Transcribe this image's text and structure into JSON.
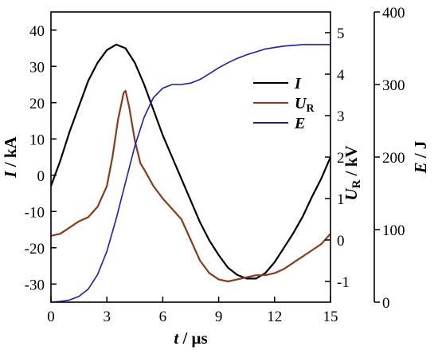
{
  "chart_data": {
    "type": "line",
    "title": "",
    "xlabel": {
      "var": "t",
      "unit": " / μs"
    },
    "x_ticks": [
      "0",
      "3",
      "6",
      "9",
      "12",
      "15"
    ],
    "xlim": [
      0,
      15
    ],
    "axes": {
      "left": {
        "var": "I",
        "sub": "",
        "unit": " / kA",
        "lim": [
          -35,
          45
        ],
        "ticks": [
          "-30",
          "-20",
          "-10",
          "0",
          "10",
          "20",
          "30",
          "40"
        ]
      },
      "right1": {
        "var": "U",
        "sub": "R",
        "unit": " / kV",
        "lim": [
          -1.5,
          5.5
        ],
        "ticks": [
          "-1",
          "0",
          "1",
          "2",
          "3",
          "4",
          "5"
        ]
      },
      "right2": {
        "var": "E",
        "sub": "",
        "unit": " / J",
        "lim": [
          0,
          400
        ],
        "ticks": [
          "0",
          "100",
          "200",
          "300",
          "400"
        ]
      }
    },
    "grid": false,
    "legend_position": "right",
    "series": [
      {
        "name": "I",
        "sub": "",
        "color": "#000000",
        "axis": "left",
        "x": [
          0,
          0.5,
          1,
          1.5,
          2,
          2.5,
          3,
          3.5,
          4,
          4.5,
          5,
          5.5,
          6,
          6.5,
          7,
          7.5,
          8,
          8.5,
          9,
          9.5,
          10,
          10.5,
          11,
          11.5,
          12,
          12.5,
          13,
          13.5,
          14,
          14.5,
          15
        ],
        "y": [
          -3,
          4,
          12,
          19,
          26,
          31,
          34.5,
          36,
          35,
          31,
          25,
          18,
          11,
          5,
          -1,
          -7,
          -13,
          -18,
          -22,
          -25.5,
          -27.5,
          -28.5,
          -28.5,
          -27,
          -24,
          -20,
          -16,
          -11.5,
          -6,
          -1,
          5
        ]
      },
      {
        "name": "U",
        "sub": "R",
        "color": "#8b3a1a",
        "axis": "right1",
        "x": [
          0,
          0.5,
          1,
          1.5,
          2,
          2.5,
          3,
          3.3,
          3.6,
          3.9,
          4.0,
          4.2,
          4.5,
          4.8,
          5,
          5.5,
          6,
          6.5,
          7,
          7.5,
          8,
          8.5,
          9,
          9.5,
          10,
          10.5,
          11,
          11.5,
          12,
          12.5,
          13,
          13.5,
          14,
          14.5,
          15
        ],
        "y": [
          0.1,
          0.15,
          0.3,
          0.45,
          0.55,
          0.8,
          1.3,
          2.0,
          2.9,
          3.55,
          3.6,
          3.2,
          2.4,
          1.85,
          1.7,
          1.3,
          1.0,
          0.75,
          0.5,
          0.0,
          -0.5,
          -0.8,
          -0.95,
          -1.0,
          -0.95,
          -0.9,
          -0.85,
          -0.85,
          -0.8,
          -0.7,
          -0.55,
          -0.4,
          -0.25,
          -0.1,
          0.15
        ]
      },
      {
        "name": "E",
        "sub": "",
        "color": "#1a1acc",
        "axis": "right2",
        "x": [
          0,
          0.5,
          1,
          1.5,
          2,
          2.5,
          3,
          3.5,
          4,
          4.5,
          5,
          5.5,
          6,
          6.5,
          7,
          7.5,
          8,
          8.5,
          9,
          9.5,
          10,
          10.5,
          11,
          11.5,
          12,
          12.5,
          13,
          13.5,
          14,
          14.5,
          15
        ],
        "y": [
          0,
          1,
          3,
          8,
          18,
          38,
          70,
          115,
          165,
          215,
          255,
          282,
          295,
          300,
          300,
          302,
          307,
          315,
          323,
          330,
          336,
          341,
          345,
          349,
          351,
          353,
          354,
          355,
          355,
          355,
          355
        ]
      }
    ]
  }
}
